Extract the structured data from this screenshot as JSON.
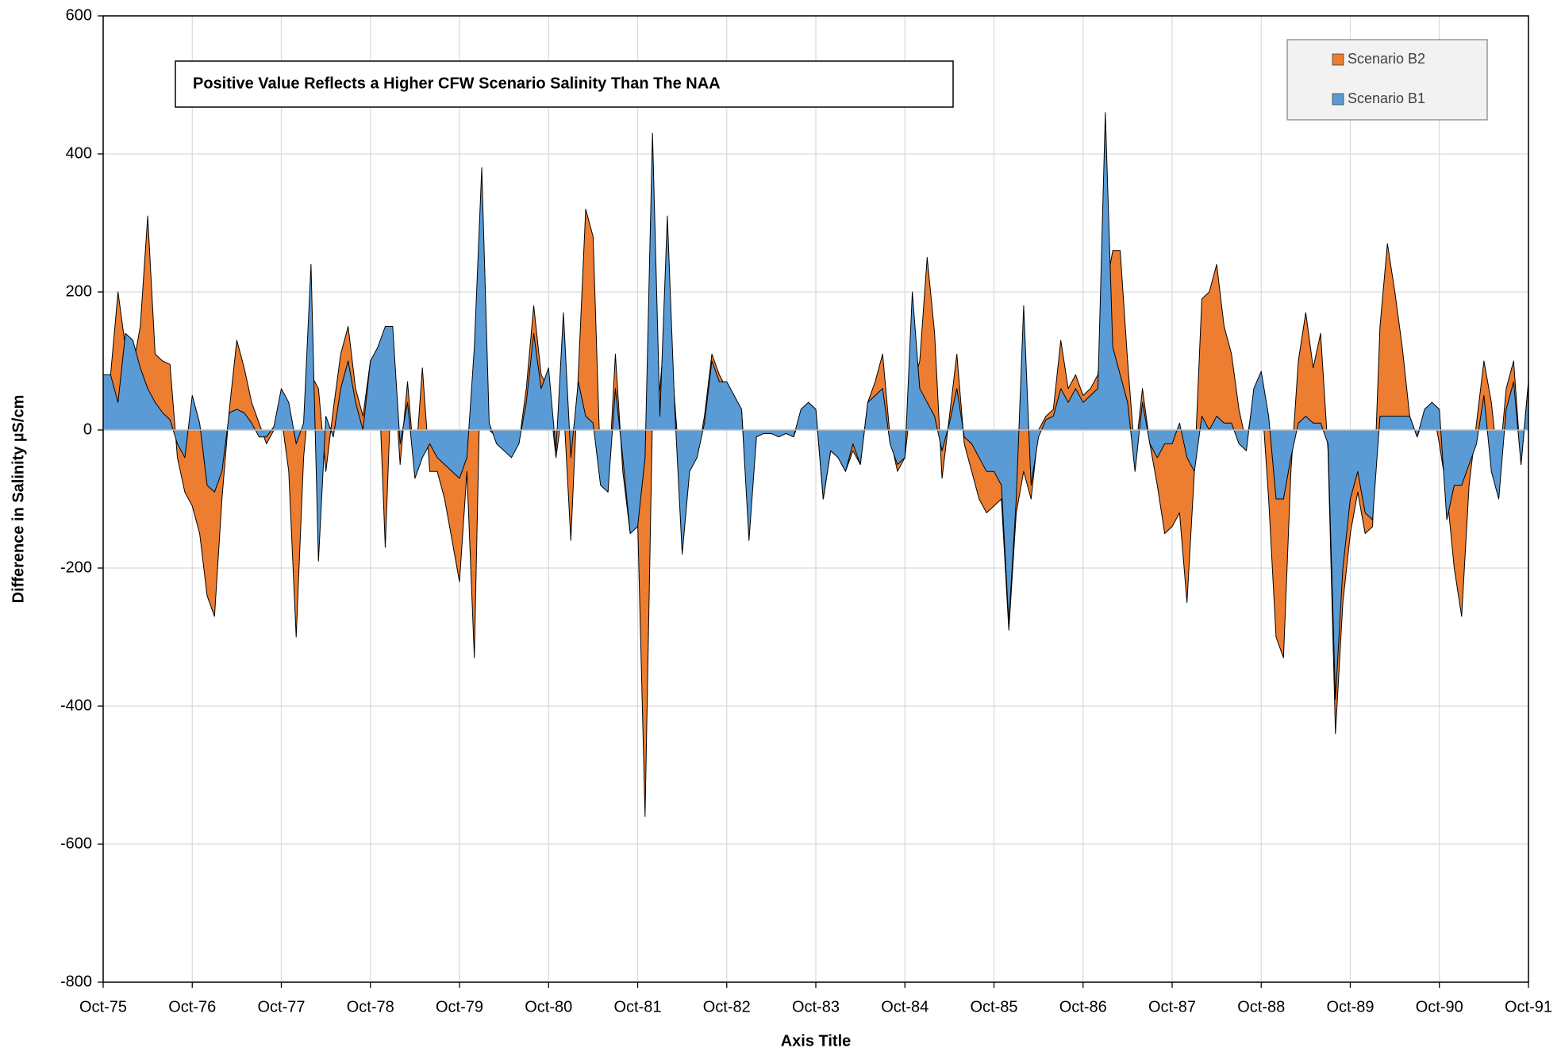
{
  "chart_data": {
    "type": "area",
    "annotation": "Positive Value Reflects a Higher CFW Scenario Salinity Than The NAA",
    "x_label": "Axis Title",
    "y_label": "Difference in Salinity µS/cm",
    "ylim": [
      -800,
      600
    ],
    "yticks": [
      -800,
      -600,
      -400,
      -200,
      0,
      200,
      400,
      600
    ],
    "grid": true,
    "legend": "upper right",
    "categories": [
      "Oct-75",
      null,
      null,
      null,
      null,
      null,
      null,
      null,
      null,
      null,
      null,
      null,
      "Oct-76",
      null,
      null,
      null,
      null,
      null,
      null,
      null,
      null,
      null,
      null,
      null,
      "Oct-77",
      null,
      null,
      null,
      null,
      null,
      null,
      null,
      null,
      null,
      null,
      null,
      "Oct-78",
      null,
      null,
      null,
      null,
      null,
      null,
      null,
      null,
      null,
      null,
      null,
      "Oct-79",
      null,
      null,
      null,
      null,
      null,
      null,
      null,
      null,
      null,
      null,
      null,
      "Oct-80",
      null,
      null,
      null,
      null,
      null,
      null,
      null,
      null,
      null,
      null,
      null,
      "Oct-81",
      null,
      null,
      null,
      null,
      null,
      null,
      null,
      null,
      null,
      null,
      null,
      "Oct-82",
      null,
      null,
      null,
      null,
      null,
      null,
      null,
      null,
      null,
      null,
      null,
      "Oct-83",
      null,
      null,
      null,
      null,
      null,
      null,
      null,
      null,
      null,
      null,
      null,
      "Oct-84",
      null,
      null,
      null,
      null,
      null,
      null,
      null,
      null,
      null,
      null,
      null,
      "Oct-85",
      null,
      null,
      null,
      null,
      null,
      null,
      null,
      null,
      null,
      null,
      null,
      "Oct-86",
      null,
      null,
      null,
      null,
      null,
      null,
      null,
      null,
      null,
      null,
      null,
      "Oct-87",
      null,
      null,
      null,
      null,
      null,
      null,
      null,
      null,
      null,
      null,
      null,
      "Oct-88",
      null,
      null,
      null,
      null,
      null,
      null,
      null,
      null,
      null,
      null,
      null,
      "Oct-89",
      null,
      null,
      null,
      null,
      null,
      null,
      null,
      null,
      null,
      null,
      null,
      "Oct-90",
      null,
      null,
      null,
      null,
      null,
      null,
      null,
      null,
      null,
      null,
      null,
      "Oct-91"
    ],
    "series": [
      {
        "name": "Scenario B2",
        "color": "#ED7D31",
        "values": [
          60,
          80,
          200,
          120,
          90,
          150,
          310,
          110,
          100,
          95,
          -40,
          -90,
          -110,
          -150,
          -240,
          -270,
          -100,
          30,
          130,
          90,
          40,
          10,
          -20,
          0,
          20,
          -60,
          -300,
          -40,
          80,
          60,
          -60,
          30,
          110,
          150,
          60,
          20,
          100,
          110,
          -170,
          120,
          -50,
          70,
          -60,
          90,
          -60,
          -60,
          -100,
          -160,
          -220,
          -60,
          -330,
          180,
          0,
          -10,
          -20,
          -30,
          -20,
          60,
          180,
          80,
          60,
          -40,
          40,
          -160,
          80,
          320,
          280,
          -60,
          -90,
          110,
          -60,
          -150,
          -130,
          -560,
          20,
          60,
          190,
          40,
          -100,
          -30,
          -40,
          20,
          110,
          80,
          60,
          40,
          30,
          -150,
          -10,
          -5,
          -5,
          -10,
          -5,
          -10,
          20,
          40,
          30,
          -100,
          -30,
          -40,
          -60,
          -30,
          -50,
          40,
          70,
          110,
          -10,
          -60,
          -40,
          60,
          100,
          250,
          140,
          -70,
          20,
          110,
          -20,
          -60,
          -100,
          -120,
          -110,
          -100,
          -290,
          -120,
          -60,
          -100,
          0,
          20,
          30,
          130,
          60,
          80,
          50,
          60,
          80,
          200,
          260,
          260,
          100,
          -40,
          60,
          -20,
          -80,
          -150,
          -140,
          -120,
          -250,
          -60,
          190,
          200,
          240,
          150,
          110,
          30,
          -20,
          50,
          60,
          -100,
          -300,
          -330,
          -60,
          100,
          170,
          90,
          140,
          -30,
          -440,
          -250,
          -150,
          -90,
          -150,
          -140,
          150,
          270,
          200,
          120,
          20,
          -10,
          20,
          40,
          -20,
          -90,
          -200,
          -270,
          -80,
          10,
          100,
          40,
          -60,
          60,
          100,
          -50,
          70
        ]
      },
      {
        "name": "Scenario B1",
        "color": "#5B9BD5",
        "values": [
          80,
          80,
          40,
          140,
          130,
          90,
          60,
          40,
          25,
          15,
          -20,
          -40,
          50,
          10,
          -80,
          -90,
          -60,
          25,
          30,
          25,
          10,
          -10,
          -10,
          5,
          60,
          40,
          -20,
          10,
          240,
          -190,
          20,
          -10,
          60,
          100,
          40,
          0,
          100,
          120,
          150,
          150,
          -20,
          40,
          -70,
          -40,
          -20,
          -40,
          -50,
          -60,
          -70,
          -40,
          120,
          380,
          10,
          -20,
          -30,
          -40,
          -20,
          40,
          140,
          60,
          90,
          -30,
          170,
          -40,
          70,
          20,
          10,
          -80,
          -90,
          60,
          -40,
          -150,
          -140,
          -40,
          430,
          20,
          310,
          30,
          -180,
          -60,
          -40,
          10,
          100,
          70,
          70,
          50,
          30,
          -160,
          -10,
          -5,
          -5,
          -10,
          -5,
          -10,
          30,
          40,
          30,
          -100,
          -30,
          -40,
          -60,
          -20,
          -50,
          40,
          50,
          60,
          -20,
          -50,
          -40,
          200,
          60,
          40,
          20,
          -30,
          10,
          60,
          -10,
          -20,
          -40,
          -60,
          -60,
          -80,
          -280,
          -100,
          180,
          -80,
          -10,
          15,
          20,
          60,
          40,
          60,
          40,
          50,
          60,
          460,
          120,
          80,
          40,
          -60,
          40,
          -20,
          -40,
          -20,
          -20,
          10,
          -40,
          -60,
          20,
          0,
          20,
          10,
          10,
          -20,
          -30,
          60,
          85,
          20,
          -100,
          -100,
          -40,
          10,
          20,
          10,
          10,
          -20,
          -390,
          -200,
          -100,
          -60,
          -120,
          -130,
          20,
          20,
          20,
          20,
          20,
          -10,
          30,
          40,
          30,
          -130,
          -80,
          -80,
          -50,
          -20,
          50,
          -60,
          -100,
          30,
          70,
          -50,
          70
        ]
      }
    ]
  }
}
